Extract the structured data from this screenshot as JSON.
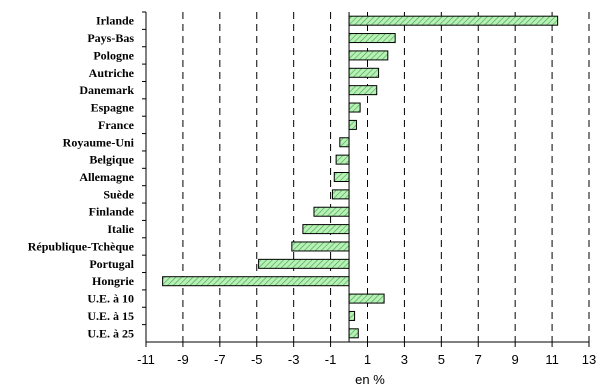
{
  "chart_data": {
    "type": "bar",
    "orientation": "horizontal",
    "title": "",
    "xlabel": "en %",
    "ylabel": "",
    "xlim": [
      -11,
      13
    ],
    "x_ticks": [
      -11,
      -9,
      -7,
      -5,
      -3,
      -1,
      1,
      3,
      5,
      7,
      9,
      11,
      13
    ],
    "grid": "vertical dashed",
    "bar_color": "#9be39b",
    "bar_pattern": "diagonal-hatch",
    "categories": [
      "Irlande",
      "Pays-Bas",
      "Pologne",
      "Autriche",
      "Danemark",
      "Espagne",
      "France",
      "Royaume-Uni",
      "Belgique",
      "Allemagne",
      "Suède",
      "Finlande",
      "Italie",
      "République-Tchèque",
      "Portugal",
      "Hongrie",
      "U.E. à 10",
      "U.E. à 15",
      "U.E. à 25"
    ],
    "values": [
      11.3,
      2.5,
      2.1,
      1.6,
      1.5,
      0.6,
      0.4,
      -0.5,
      -0.7,
      -0.8,
      -0.9,
      -1.9,
      -2.5,
      -3.1,
      -4.9,
      -10.1,
      1.9,
      0.3,
      0.5
    ]
  }
}
